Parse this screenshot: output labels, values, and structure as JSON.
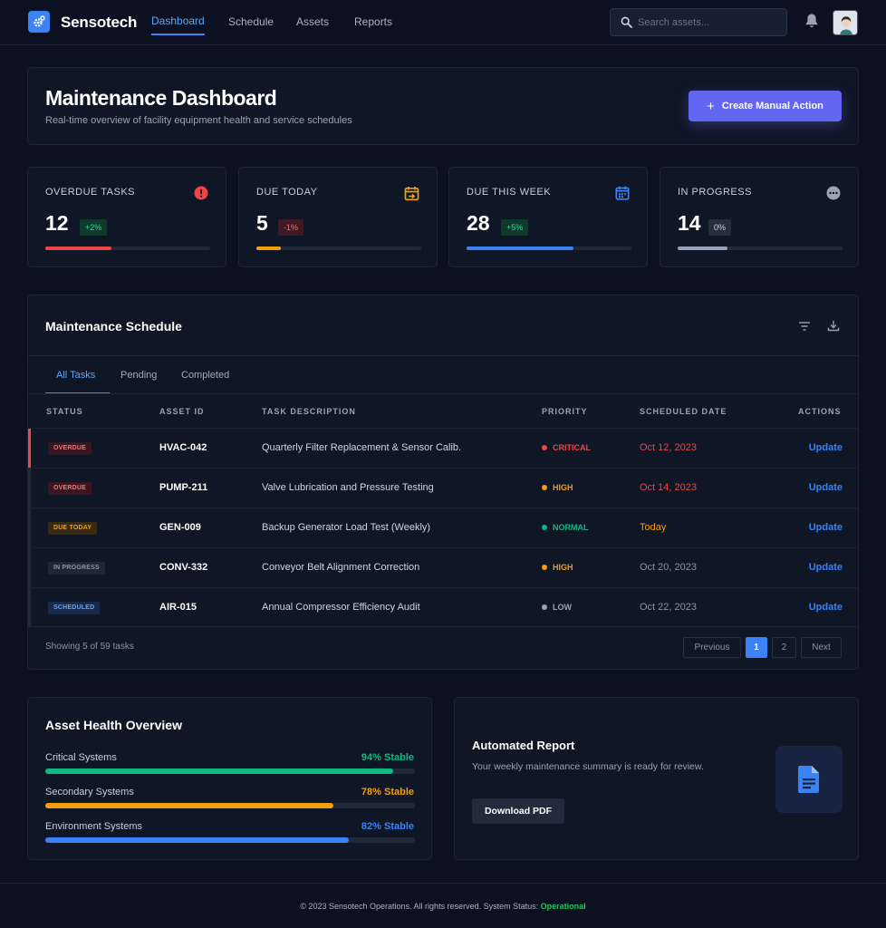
{
  "brand": {
    "name": "Sensotech"
  },
  "nav": {
    "items": [
      {
        "label": "Dashboard",
        "active": true
      },
      {
        "label": "Schedule",
        "active": false
      },
      {
        "label": "Assets",
        "active": false
      },
      {
        "label": "Reports",
        "active": false
      }
    ],
    "search_placeholder": "Search assets..."
  },
  "header": {
    "title": "Maintenance Dashboard",
    "subtitle": "Real-time overview of facility equipment health and service schedules",
    "create_label": "Create Manual Action"
  },
  "stats": [
    {
      "label": "OVERDUE TASKS",
      "value": "12",
      "badge": "+2%",
      "icon": "alert-icon",
      "color": "#ef4444",
      "progress": 0.4
    },
    {
      "label": "DUE TODAY",
      "value": "5",
      "badge": "-1%",
      "icon": "calendar-arrow-icon",
      "color": "#f59e0b",
      "progress": 0.15
    },
    {
      "label": "DUE THIS WEEK",
      "value": "28",
      "badge": "+5%",
      "icon": "calendar-icon",
      "color": "#3b82f6",
      "progress": 0.65
    },
    {
      "label": "IN PROGRESS",
      "value": "14",
      "badge": "0%",
      "icon": "more-circle-icon",
      "color": "#94a3b8",
      "progress": 0.3
    }
  ],
  "schedule": {
    "title": "Maintenance Schedule",
    "tabs": [
      "All Tasks",
      "Pending",
      "Completed"
    ],
    "columns": [
      "STATUS",
      "ASSET ID",
      "TASK DESCRIPTION",
      "PRIORITY",
      "SCHEDULED DATE",
      "ACTIONS"
    ],
    "rows": [
      {
        "status": "OVERDUE",
        "asset": "HVAC-042",
        "task": "Quarterly Filter Replacement & Sensor Calib.",
        "priority": "CRITICAL",
        "date": "Oct 12, 2023",
        "action": "Update"
      },
      {
        "status": "OVERDUE",
        "asset": "PUMP-211",
        "task": "Valve Lubrication and Pressure Testing",
        "priority": "HIGH",
        "date": "Oct 14, 2023",
        "action": "Update"
      },
      {
        "status": "DUE TODAY",
        "asset": "GEN-009",
        "task": "Backup Generator Load Test (Weekly)",
        "priority": "NORMAL",
        "date": "Today",
        "action": "Update"
      },
      {
        "status": "IN PROGRESS",
        "asset": "CONV-332",
        "task": "Conveyor Belt Alignment Correction",
        "priority": "HIGH",
        "date": "Oct 20, 2023",
        "action": "Update"
      },
      {
        "status": "SCHEDULED",
        "asset": "AIR-015",
        "task": "Annual Compressor Efficiency Audit",
        "priority": "LOW",
        "date": "Oct 22, 2023",
        "action": "Update"
      }
    ],
    "showing": "Showing 5 of 59 tasks",
    "pagination": {
      "previous": "Previous",
      "pages": [
        "1",
        "2"
      ],
      "current": "1",
      "next": "Next"
    }
  },
  "health": {
    "title": "Asset Health Overview",
    "items": [
      {
        "label": "Critical Systems",
        "value": "94% Stable",
        "level": 0.94,
        "color": "#10b981"
      },
      {
        "label": "Secondary Systems",
        "value": "78% Stable",
        "level": 0.78,
        "color": "#f59e0b"
      },
      {
        "label": "Environment Systems",
        "value": "82% Stable",
        "level": 0.82,
        "color": "#3b82f6"
      }
    ]
  },
  "report": {
    "title": "Automated Report",
    "description": "Your weekly maintenance summary is ready for review.",
    "button": "Download PDF"
  },
  "footer": {
    "text": "© 2023 Sensotech Operations. All rights reserved. System Status:",
    "status": "Operational"
  }
}
